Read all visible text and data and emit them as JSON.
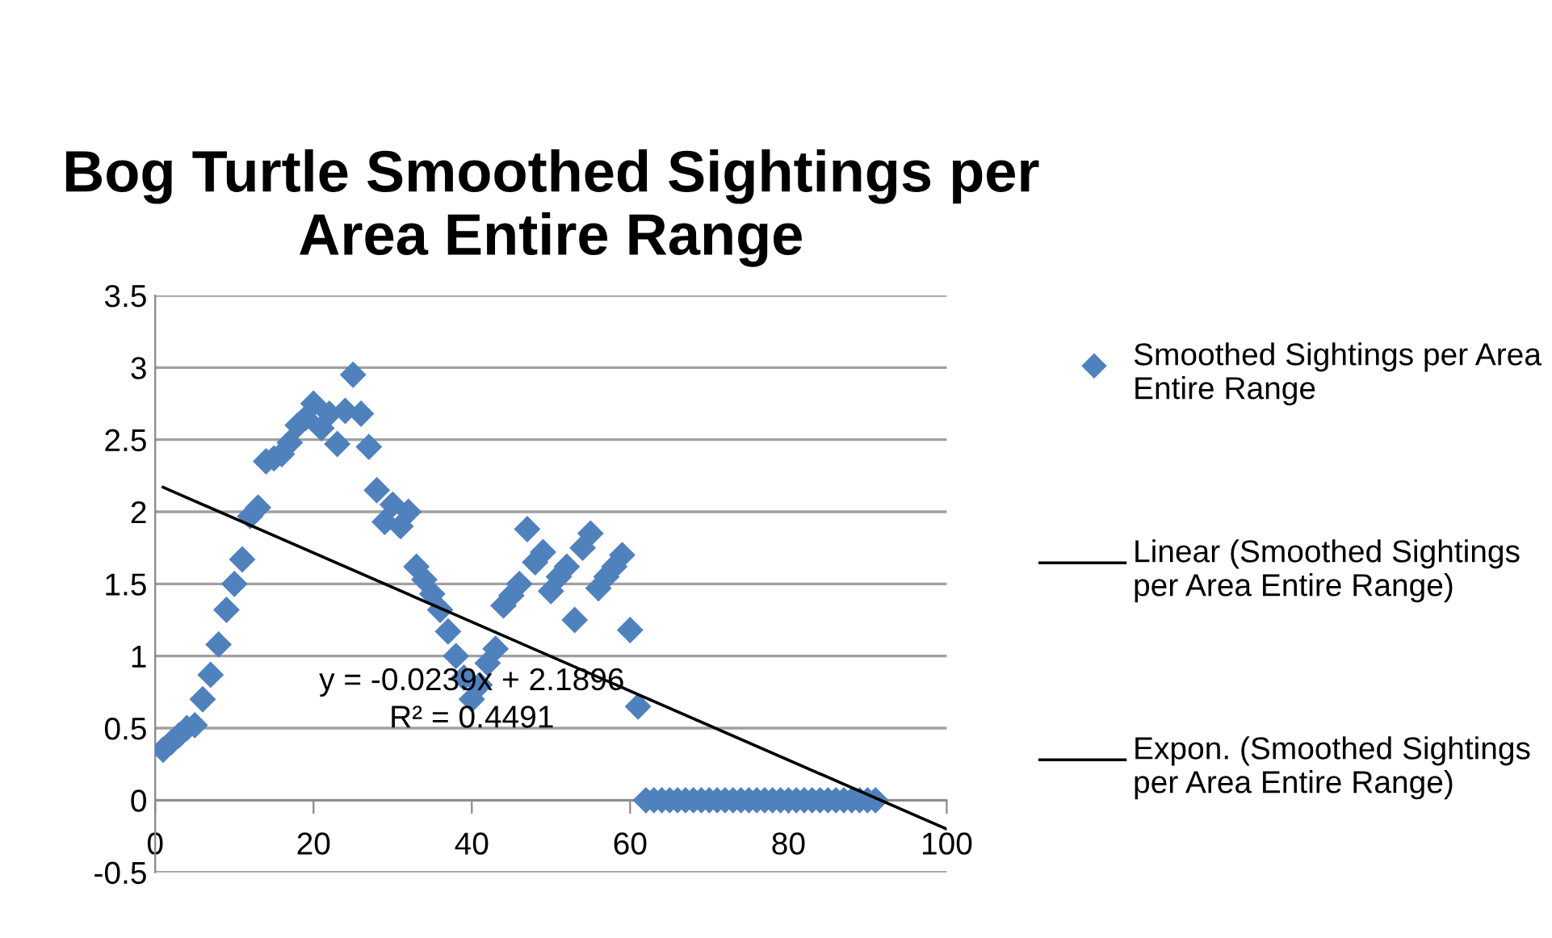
{
  "chart_data": {
    "type": "scatter",
    "title": "Bog Turtle Smoothed Sightings per Area Entire Range",
    "series": [
      {
        "name": "Smoothed Sightings per Area Entire Range",
        "type": "scatter",
        "marker": "diamond",
        "color": "#4f81bd",
        "x": [
          1,
          2,
          3,
          4,
          5,
          6,
          7,
          8,
          9,
          10,
          11,
          12,
          13,
          14,
          15,
          16,
          17,
          18,
          19,
          20,
          21,
          22,
          23,
          24,
          25,
          26,
          27,
          28,
          29,
          30,
          31,
          32,
          33,
          34,
          35,
          36,
          37,
          38,
          39,
          40,
          41,
          42,
          43,
          44,
          45,
          46,
          47,
          48,
          49,
          50,
          51,
          52,
          53,
          54,
          55,
          56,
          57,
          58,
          59,
          60,
          61,
          62,
          63,
          64,
          65,
          66,
          67,
          68,
          69,
          70,
          71,
          72,
          73,
          74,
          75,
          76,
          77,
          78,
          79,
          80,
          81,
          82,
          83,
          84,
          85,
          86,
          87,
          88,
          89,
          90,
          91
        ],
        "values": [
          0.35,
          0.4,
          0.45,
          0.5,
          0.52,
          0.7,
          0.87,
          1.08,
          1.32,
          1.5,
          1.67,
          1.97,
          2.03,
          2.35,
          2.37,
          2.4,
          2.48,
          2.6,
          2.65,
          2.75,
          2.58,
          2.68,
          2.47,
          2.7,
          2.95,
          2.68,
          2.45,
          2.15,
          1.93,
          2.05,
          1.9,
          2.0,
          1.62,
          1.53,
          1.43,
          1.32,
          1.17,
          1.0,
          0.85,
          0.7,
          0.8,
          0.95,
          1.05,
          1.35,
          1.42,
          1.5,
          1.88,
          1.65,
          1.72,
          1.45,
          1.55,
          1.62,
          1.25,
          1.75,
          1.85,
          1.47,
          1.55,
          1.62,
          1.7,
          1.18,
          0.65,
          0,
          0,
          0,
          0,
          0,
          0,
          0,
          0,
          0,
          0,
          0,
          0,
          0,
          0,
          0,
          0,
          0,
          0,
          0,
          0,
          0,
          0,
          0,
          0,
          0,
          0,
          0,
          0,
          0,
          0
        ]
      },
      {
        "name": "Linear (Smoothed Sightings per Area Entire Range)",
        "type": "line",
        "marker": "none",
        "color": "#000000",
        "x": [
          1,
          100
        ],
        "values": [
          2.17,
          -0.2
        ]
      },
      {
        "name": "Expon. (Smoothed Sightings per Area Entire Range)",
        "type": "line",
        "marker": "none",
        "color": "#000000"
      }
    ],
    "annotations": [
      "y = -0.0239x + 2.1896",
      "R² = 0.4491"
    ],
    "xlim": [
      0,
      100
    ],
    "xticks": [
      0,
      20,
      40,
      60,
      80,
      100
    ],
    "ylim": [
      -0.5,
      3.5
    ],
    "yticks": [
      -0.5,
      0,
      0.5,
      1,
      1.5,
      2,
      2.5,
      3,
      3.5
    ],
    "grid": "y",
    "legend": "right"
  }
}
